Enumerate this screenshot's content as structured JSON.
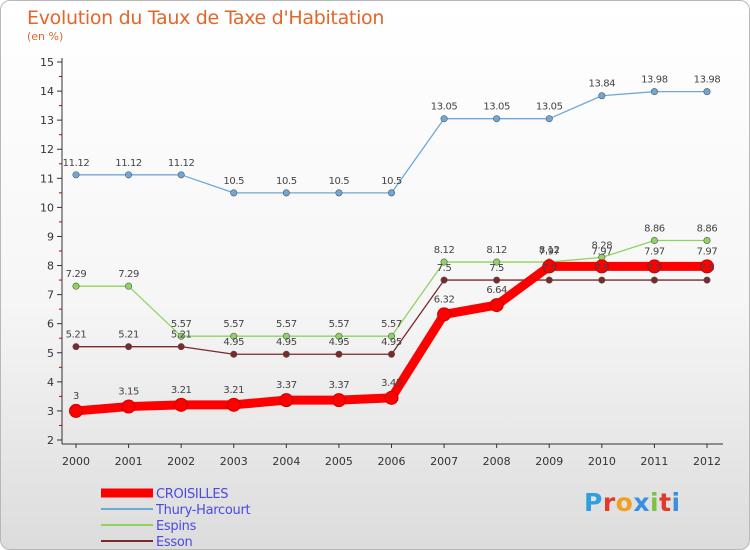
{
  "header": {
    "title": "Evolution du Taux de Taxe d'Habitation",
    "unit": "(en %)"
  },
  "logo": {
    "text": "Proxiti",
    "letter_colors": [
      "#2f9fe0",
      "#e23a2a",
      "#f0a020",
      "#3a8fe0",
      "#7cc242",
      "#e23a2a",
      "#3a8fe0"
    ]
  },
  "chart_data": {
    "type": "line",
    "title": "Evolution du Taux de Taxe d'Habitation",
    "subtitle": "(en %)",
    "xlabel": "",
    "ylabel": "",
    "x": [
      "2000",
      "2001",
      "2002",
      "2003",
      "2004",
      "2005",
      "2006",
      "2007",
      "2008",
      "2009",
      "2010",
      "2011",
      "2012"
    ],
    "yticks": [
      "2",
      "3",
      "4",
      "5",
      "6",
      "7",
      "8",
      "9",
      "10",
      "11",
      "12",
      "13",
      "14",
      "15"
    ],
    "ylim": [
      2,
      15
    ],
    "grid": false,
    "legend_position": "bottom-left",
    "series": [
      {
        "name": "CROISILLES",
        "color": "#ff0000",
        "values": [
          3,
          3.15,
          3.21,
          3.21,
          3.37,
          3.37,
          3.45,
          6.32,
          6.64,
          7.97,
          7.97,
          7.97,
          7.97
        ],
        "labels": [
          "3",
          "3.15",
          "3.21",
          "3.21",
          "3.37",
          "3.37",
          "3.45",
          "6.32",
          "6.64",
          "7.97",
          "7.97",
          "7.97",
          "7.97"
        ]
      },
      {
        "name": "Thury-Harcourt",
        "color": "#6fa8d8",
        "values": [
          11.12,
          11.12,
          11.12,
          10.5,
          10.5,
          10.5,
          10.5,
          13.05,
          13.05,
          13.05,
          13.84,
          13.98,
          13.98
        ],
        "labels": [
          "11.12",
          "11.12",
          "11.12",
          "10.5",
          "10.5",
          "10.5",
          "10.5",
          "13.05",
          "13.05",
          "13.05",
          "13.84",
          "13.98",
          "13.98"
        ]
      },
      {
        "name": "Espins",
        "color": "#8fd460",
        "values": [
          7.29,
          7.29,
          5.57,
          5.57,
          5.57,
          5.57,
          5.57,
          8.12,
          8.12,
          8.12,
          8.28,
          8.86,
          8.86
        ],
        "labels": [
          "7.29",
          "7.29",
          "5.57",
          "5.57",
          "5.57",
          "5.57",
          "5.57",
          "8.12",
          "8.12",
          "8.12",
          "8.28",
          "8.86",
          "8.86"
        ]
      },
      {
        "name": "Esson",
        "color": "#7a2a2a",
        "values": [
          5.21,
          5.21,
          5.21,
          4.95,
          4.95,
          4.95,
          4.95,
          7.5,
          7.5,
          7.5,
          7.5,
          7.5,
          7.5
        ],
        "labels": [
          "5.21",
          "5.21",
          "5.21",
          "4.95",
          "4.95",
          "4.95",
          "4.95",
          "7.5",
          "7.5",
          "7.5",
          "7.5",
          "7.5",
          "7.5"
        ]
      }
    ]
  }
}
